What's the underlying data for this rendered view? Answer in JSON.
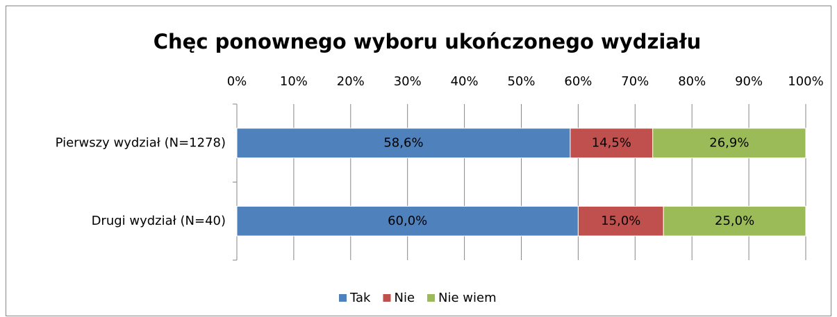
{
  "chart_data": {
    "type": "stacked-bar-horizontal",
    "title": "Chęc ponownego wyboru ukończonego wydziału",
    "categories": [
      "Pierwszy wydział (N=1278)",
      "Drugi wydział (N=40)"
    ],
    "series": [
      {
        "name": "Tak",
        "color": "#4f81bd",
        "values": [
          58.6,
          60.0
        ],
        "value_labels": [
          "58,6%",
          "60,0%"
        ]
      },
      {
        "name": "Nie",
        "color": "#c0504d",
        "values": [
          14.5,
          15.0
        ],
        "value_labels": [
          "14,5%",
          "15,0%"
        ]
      },
      {
        "name": "Nie wiem",
        "color": "#9bbb59",
        "values": [
          26.9,
          25.0
        ],
        "value_labels": [
          "26,9%",
          "25,0%"
        ]
      }
    ],
    "xlim": [
      0,
      100
    ],
    "xticks": [
      {
        "value": 0,
        "label": "0%"
      },
      {
        "value": 10,
        "label": "10%"
      },
      {
        "value": 20,
        "label": "20%"
      },
      {
        "value": 30,
        "label": "30%"
      },
      {
        "value": 40,
        "label": "40%"
      },
      {
        "value": 50,
        "label": "50%"
      },
      {
        "value": 60,
        "label": "60%"
      },
      {
        "value": 70,
        "label": "70%"
      },
      {
        "value": 80,
        "label": "80%"
      },
      {
        "value": 90,
        "label": "90%"
      },
      {
        "value": 100,
        "label": "100%"
      }
    ],
    "grid": true,
    "legend": "bottom"
  }
}
